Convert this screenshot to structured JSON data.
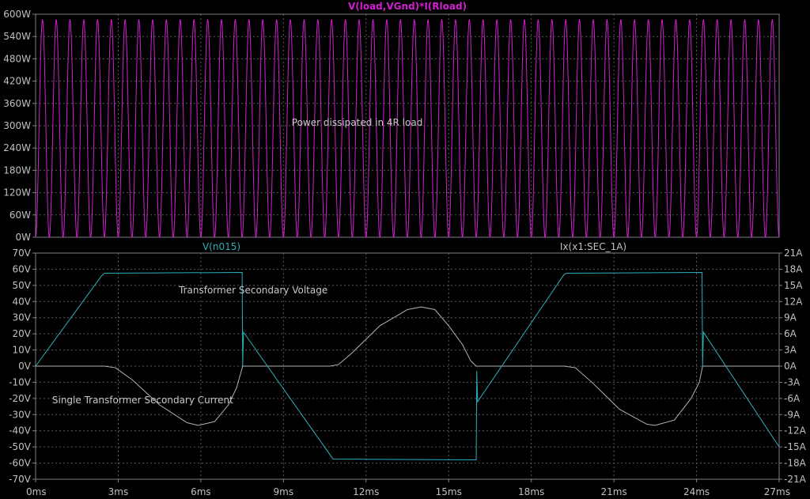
{
  "colors": {
    "background": "#000000",
    "frame": "#808080",
    "grid": "#5a5a5a",
    "tick_text": "#c0c0c0",
    "power": "#d21ed2",
    "voltage": "#2ab0bb",
    "current": "#b4b4b4",
    "annotation": "#c8c8c8"
  },
  "chart_data": [
    {
      "type": "line",
      "title": "V(load,VGnd)*I(Rload)",
      "xlim": [
        0,
        27
      ],
      "ylim": [
        0,
        600
      ],
      "yticks": [
        0,
        60,
        120,
        180,
        240,
        300,
        360,
        420,
        480,
        540,
        600
      ],
      "ytick_labels": [
        "0W",
        "60W",
        "120W",
        "180W",
        "240W",
        "300W",
        "360W",
        "420W",
        "480W",
        "540W",
        "600W"
      ],
      "grid": true,
      "series": [
        {
          "name": "V(load,VGnd)*I(Rload)",
          "color": "#d21ed2",
          "peak": 585,
          "min": 0,
          "cycles_per_ms": 2
        }
      ],
      "annotations": [
        {
          "text": "Power dissipated in 4R load",
          "x": 9.3,
          "y": 300
        }
      ]
    },
    {
      "type": "line",
      "xlim": [
        0,
        27
      ],
      "xticks": [
        0,
        3,
        6,
        9,
        12,
        15,
        18,
        21,
        24,
        27
      ],
      "xtick_labels": [
        "0ms",
        "3ms",
        "6ms",
        "9ms",
        "12ms",
        "15ms",
        "18ms",
        "21ms",
        "24ms",
        "27ms"
      ],
      "ylim": [
        -70,
        70
      ],
      "yticks": [
        -70,
        -60,
        -50,
        -40,
        -30,
        -20,
        -10,
        0,
        10,
        20,
        30,
        40,
        50,
        60,
        70
      ],
      "ytick_labels": [
        "-70V",
        "-60V",
        "-50V",
        "-40V",
        "-30V",
        "-20V",
        "-10V",
        "0V",
        "10V",
        "20V",
        "30V",
        "40V",
        "50V",
        "60V",
        "70V"
      ],
      "y2lim": [
        -21,
        21
      ],
      "y2ticks": [
        -21,
        -18,
        -15,
        -12,
        -9,
        -6,
        -3,
        0,
        3,
        6,
        9,
        12,
        15,
        18,
        21
      ],
      "y2tick_labels": [
        "-21A",
        "-18A",
        "-15A",
        "-12A",
        "-9A",
        "-6A",
        "-3A",
        "0A",
        "3A",
        "6A",
        "9A",
        "12A",
        "15A",
        "18A",
        "21A"
      ],
      "grid": true,
      "series": [
        {
          "name": "V(n015)",
          "axis": "left",
          "color": "#2ab0bb",
          "x": [
            0,
            2.4,
            2.5,
            7.5,
            7.52,
            7.55,
            10.8,
            16.0,
            16.02,
            16.05,
            19.2,
            19.3,
            24.2,
            24.22,
            24.25,
            27
          ],
          "y": [
            0,
            56,
            57.5,
            58,
            0,
            21,
            -57.5,
            -58,
            -3,
            -22,
            57,
            57.5,
            58,
            0,
            21,
            -50
          ]
        },
        {
          "name": "Ix(x1:SEC_1A)",
          "axis": "right",
          "color": "#b4b4b4",
          "x": [
            0,
            2.5,
            2.9,
            3.5,
            4.5,
            5.5,
            5.9,
            6.5,
            7.0,
            7.3,
            7.52,
            10.7,
            11.0,
            11.5,
            12.5,
            13.5,
            14.0,
            14.5,
            15.0,
            15.5,
            15.8,
            16.0,
            19.2,
            19.6,
            20.2,
            21.2,
            22.2,
            22.5,
            23.2,
            23.8,
            24.1,
            24.22,
            27
          ],
          "y": [
            0,
            0,
            -0.3,
            -2.5,
            -7.2,
            -10.5,
            -11.0,
            -10.3,
            -7.2,
            -4.0,
            0,
            0,
            0.3,
            2.5,
            7.5,
            10.5,
            11.0,
            10.5,
            7.5,
            4.0,
            1.0,
            0,
            0,
            -0.3,
            -3.0,
            -8.0,
            -10.8,
            -11.0,
            -10.0,
            -6.0,
            -3.0,
            0,
            0
          ]
        }
      ],
      "trace_labels": {
        "left": "V(n015)",
        "right": "Ix(x1:SEC_1A)"
      },
      "annotations": [
        {
          "text": "Transformer Secondary Voltage",
          "x": 5.2,
          "y": 45
        },
        {
          "text": "Single Transformer Secondary Current",
          "x": 0.6,
          "y": -23
        }
      ]
    }
  ]
}
